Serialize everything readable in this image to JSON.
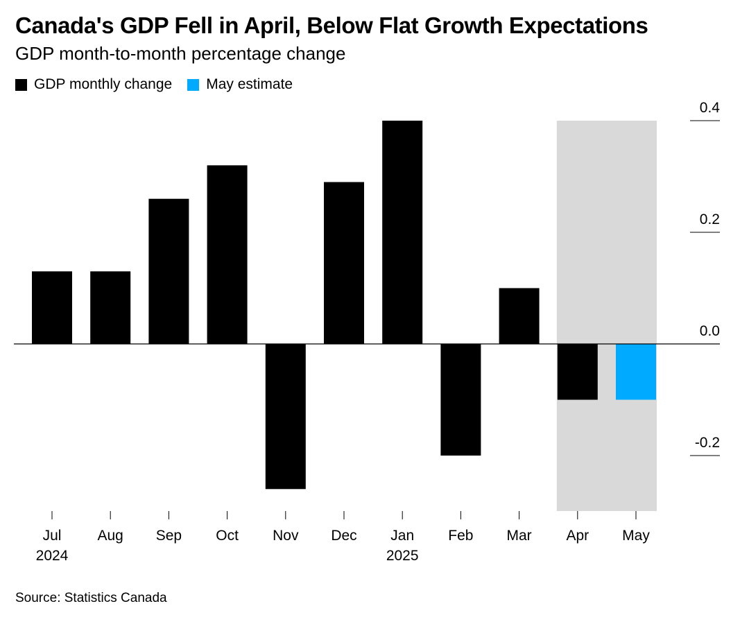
{
  "header": {
    "title": "Canada's GDP Fell in April, Below Flat Growth Expectations",
    "subtitle": "GDP month-to-month percentage change"
  },
  "legend": [
    {
      "label": "GDP monthly change",
      "color": "#000000"
    },
    {
      "label": "May estimate",
      "color": "#00aaff"
    }
  ],
  "source": "Source: Statistics Canada",
  "colors": {
    "actual": "#000000",
    "estimate": "#00aaff",
    "highlight_band": "#d9d9d9",
    "axis": "#000000"
  },
  "chart_data": {
    "type": "bar",
    "categories": [
      "Jul",
      "Aug",
      "Sep",
      "Oct",
      "Nov",
      "Dec",
      "Jan",
      "Feb",
      "Mar",
      "Apr",
      "May"
    ],
    "year_labels": {
      "Jul": "2024",
      "Jan": "2025"
    },
    "series": [
      {
        "name": "GDP monthly change",
        "values": [
          0.13,
          0.13,
          0.26,
          0.32,
          -0.26,
          0.29,
          0.4,
          -0.2,
          0.1,
          -0.1,
          null
        ]
      },
      {
        "name": "May estimate",
        "values": [
          null,
          null,
          null,
          null,
          null,
          null,
          null,
          null,
          null,
          null,
          -0.1
        ]
      }
    ],
    "y_ticks": [
      "0.4",
      "0.2",
      "0.0",
      "-0.2"
    ],
    "ylim": [
      -0.3,
      0.4
    ],
    "y_axis_position": "right",
    "highlighted_categories": [
      "Apr",
      "May"
    ],
    "grid": false,
    "legend_position": "top-left"
  }
}
